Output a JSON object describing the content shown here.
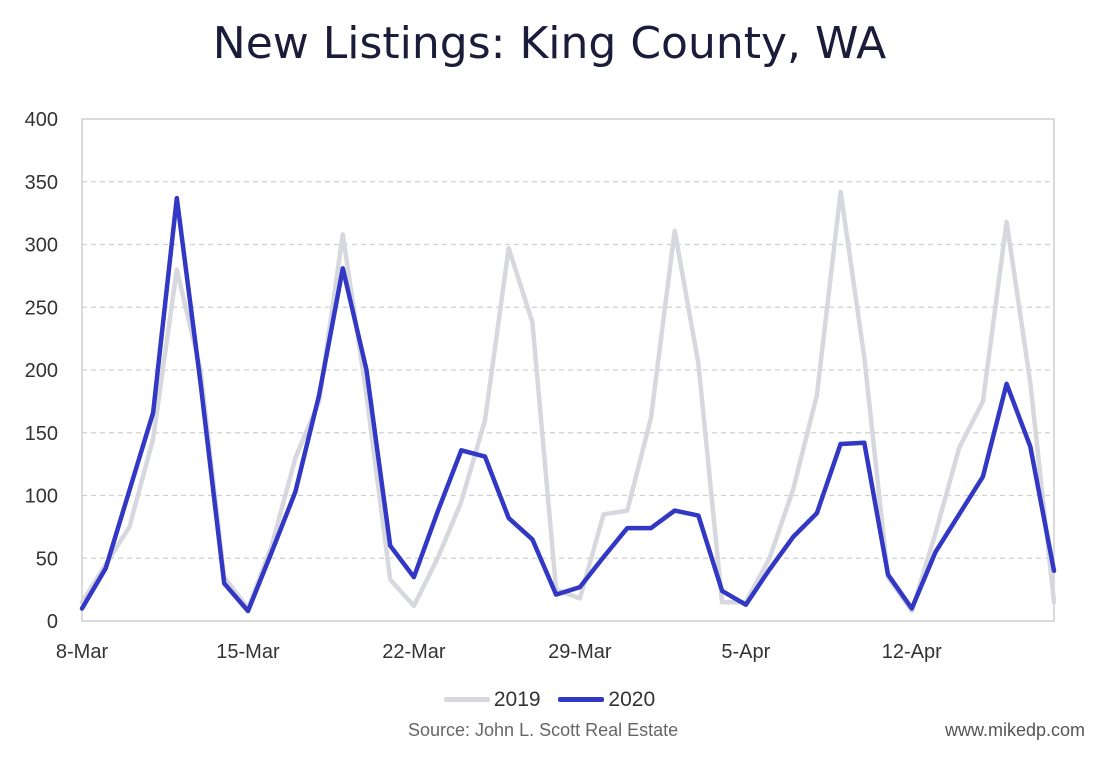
{
  "page": {
    "title": "New Listings: King County, WA"
  },
  "colors": {
    "s2019": "#d6d8de",
    "s2020": "#3238c4",
    "grid": "#d0d0d0",
    "frame": "#cfcfcf"
  },
  "footer": {
    "source": "Source: John L. Scott Real Estate",
    "website": "www.mikedp.com"
  },
  "chart_data": {
    "type": "line",
    "title": "New Listings: King County, WA",
    "xlabel": "",
    "ylabel": "",
    "ylim": [
      0,
      400
    ],
    "y_ticks": [
      0,
      50,
      100,
      150,
      200,
      250,
      300,
      350,
      400
    ],
    "x_ticks": [
      "8-Mar",
      "15-Mar",
      "22-Mar",
      "29-Mar",
      "5-Apr",
      "12-Apr"
    ],
    "grid": "horizontal dashed",
    "legend": "bottom-center",
    "x": [
      "8-Mar",
      "9-Mar",
      "10-Mar",
      "11-Mar",
      "12-Mar",
      "13-Mar",
      "14-Mar",
      "15-Mar",
      "16-Mar",
      "17-Mar",
      "18-Mar",
      "19-Mar",
      "20-Mar",
      "21-Mar",
      "22-Mar",
      "23-Mar",
      "24-Mar",
      "25-Mar",
      "26-Mar",
      "27-Mar",
      "28-Mar",
      "29-Mar",
      "30-Mar",
      "31-Mar",
      "1-Apr",
      "2-Apr",
      "3-Apr",
      "4-Apr",
      "5-Apr",
      "6-Apr",
      "7-Apr",
      "8-Apr",
      "9-Apr",
      "10-Apr",
      "11-Apr",
      "12-Apr",
      "13-Apr",
      "14-Apr",
      "15-Apr",
      "16-Apr",
      "17-Apr",
      "18-Apr"
    ],
    "series": [
      {
        "name": "2019",
        "values": [
          15,
          45,
          75,
          145,
          280,
          200,
          35,
          10,
          60,
          130,
          175,
          308,
          180,
          33,
          12,
          50,
          95,
          160,
          297,
          238,
          25,
          18,
          85,
          88,
          162,
          311,
          205,
          15,
          15,
          50,
          105,
          180,
          342,
          210,
          35,
          8,
          70,
          138,
          175,
          318,
          190,
          15
        ]
      },
      {
        "name": "2020",
        "values": [
          10,
          42,
          104,
          166,
          337,
          190,
          30,
          8,
          55,
          103,
          180,
          281,
          200,
          60,
          35,
          87,
          136,
          131,
          82,
          65,
          21,
          27,
          51,
          74,
          74,
          88,
          84,
          24,
          13,
          41,
          67,
          86,
          141,
          142,
          37,
          10,
          55,
          85,
          115,
          189,
          139,
          40
        ]
      }
    ]
  }
}
